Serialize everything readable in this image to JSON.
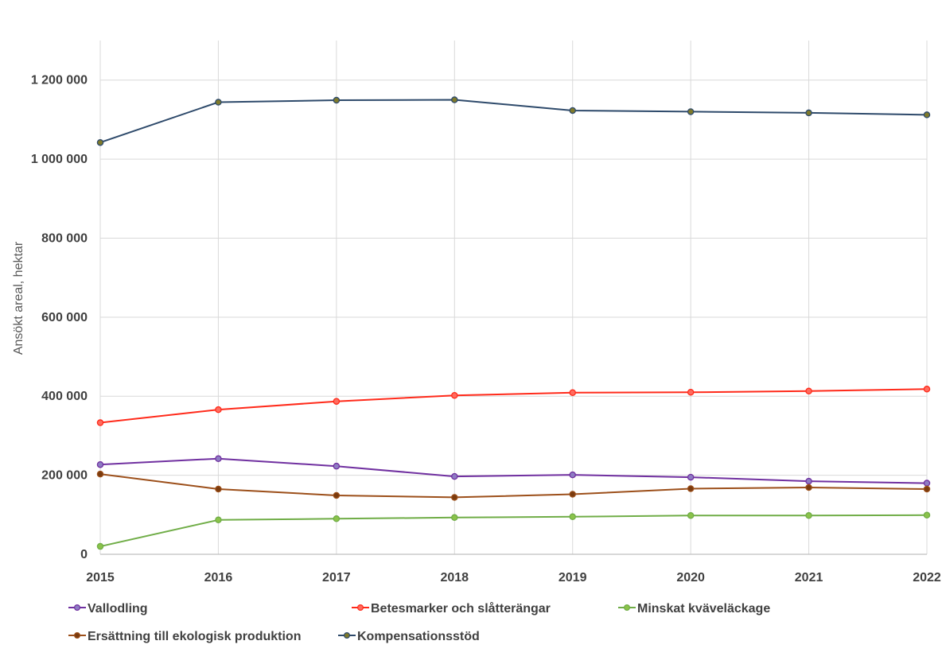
{
  "chart_data": {
    "type": "line",
    "title": "",
    "xlabel": "",
    "ylabel": "Ansökt areal, hektar",
    "x": [
      "2015",
      "2016",
      "2017",
      "2018",
      "2019",
      "2020",
      "2021",
      "2022"
    ],
    "ylim": [
      0,
      1300000
    ],
    "yticks": [
      0,
      200000,
      400000,
      600000,
      800000,
      1000000,
      1200000
    ],
    "ytick_labels": [
      "0",
      "200 000",
      "400 000",
      "600 000",
      "800 000",
      "1 000 000",
      "1 200 000"
    ],
    "grid": true,
    "legend_position": "bottom",
    "series": [
      {
        "name": "Vallodling",
        "color": "#7030a0",
        "marker_fill": "#8e7cc3",
        "values": [
          227000,
          242000,
          223000,
          197000,
          201000,
          195000,
          185000,
          180000
        ]
      },
      {
        "name": "Betesmarker och slåtterängar",
        "color": "#ff2a1a",
        "marker_fill": "#ff6b5e",
        "values": [
          333000,
          366000,
          387000,
          402000,
          409000,
          410000,
          413000,
          418000
        ]
      },
      {
        "name": "Minskat kväveläckage",
        "color": "#70ad47",
        "marker_fill": "#8bc34a",
        "values": [
          20000,
          87000,
          90000,
          93000,
          95000,
          98000,
          98000,
          99000
        ]
      },
      {
        "name": "Ersättning till ekologisk produktion",
        "color": "#9c4f1a",
        "marker_fill": "#7a3b0e",
        "values": [
          203000,
          165000,
          149000,
          144000,
          152000,
          166000,
          169000,
          165000
        ]
      },
      {
        "name": "Kompensationsstöd",
        "color": "#2e4a6b",
        "marker_fill": "#7f7a2a",
        "values": [
          1042000,
          1144000,
          1149000,
          1150000,
          1123000,
          1120000,
          1117000,
          1112000
        ]
      }
    ]
  }
}
